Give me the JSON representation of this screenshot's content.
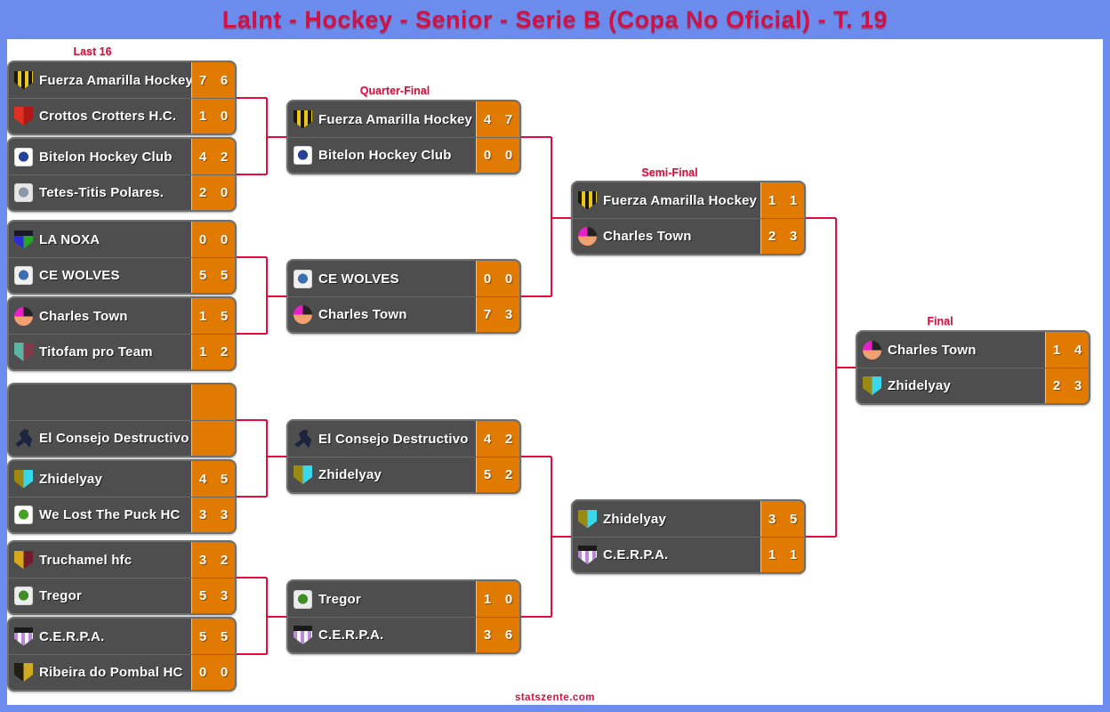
{
  "header": {
    "title": "LaInt - Hockey - Senior - Serie B (Copa No Oficial) - T. 19"
  },
  "footer": {
    "watermark": "statszente.com"
  },
  "colors": {
    "banner_blue": "#6b8ced",
    "label_crimson": "#d6113f",
    "connector_crimson": "#e50b3c",
    "row_gray": "#4e4e4e",
    "score_orange": "#e17a00"
  },
  "bracket": {
    "rounds": [
      {
        "label": "Last 16",
        "matches": [
          {
            "teams": [
              {
                "name": "Fuerza Amarilla Hockey",
                "scores": [
                  "7",
                  "6"
                ],
                "icon": {
                  "name": "fuerza-amarilla-crest-icon",
                  "shape": "stripes",
                  "colors": [
                    "#1a1710",
                    "#e8c520"
                  ]
                }
              },
              {
                "name": "Crottos Crotters H.C.",
                "scores": [
                  "1",
                  "0"
                ],
                "icon": {
                  "name": "crottos-crotters-crest-icon",
                  "shape": "shield",
                  "colors": [
                    "#e03024",
                    "#b01818"
                  ]
                }
              }
            ]
          },
          {
            "teams": [
              {
                "name": "Bitelon Hockey Club",
                "scores": [
                  "4",
                  "2"
                ],
                "icon": {
                  "name": "bitelon-crest-icon",
                  "shape": "square",
                  "colors": [
                    "#ffffff",
                    "#24429a"
                  ]
                }
              },
              {
                "name": "Tetes-Titis Polares.",
                "scores": [
                  "2",
                  "0"
                ],
                "icon": {
                  "name": "tetes-titis-mascot-icon",
                  "shape": "square",
                  "colors": [
                    "#e6e6e6",
                    "#8c96aa"
                  ]
                }
              }
            ]
          },
          {
            "teams": [
              {
                "name": "LA NOXA",
                "scores": [
                  "0",
                  "0"
                ],
                "icon": {
                  "name": "la-noxa-crest-icon",
                  "shape": "shield",
                  "colors": [
                    "#2c2cd8",
                    "#28a428",
                    "#181828"
                  ]
                }
              },
              {
                "name": "CE WOLVES",
                "scores": [
                  "5",
                  "5"
                ],
                "icon": {
                  "name": "ce-wolves-crest-icon",
                  "shape": "square",
                  "colors": [
                    "#f0f0f0",
                    "#3c6eb0"
                  ]
                }
              }
            ]
          },
          {
            "teams": [
              {
                "name": "Charles Town",
                "scores": [
                  "1",
                  "5"
                ],
                "icon": {
                  "name": "charles-town-crest-icon",
                  "shape": "circle",
                  "colors": [
                    "#222222",
                    "#f2a070",
                    "#e81ec8"
                  ]
                }
              },
              {
                "name": "Titofam pro Team",
                "scores": [
                  "1",
                  "2"
                ],
                "icon": {
                  "name": "titofam-crest-icon",
                  "shape": "shield",
                  "colors": [
                    "#5cb4a4",
                    "#82394a"
                  ]
                }
              }
            ]
          },
          {
            "teams": [
              {
                "name": "",
                "scores": [
                  "",
                  ""
                ],
                "icon": {
                  "name": "empty-slot",
                  "shape": "none",
                  "colors": []
                }
              },
              {
                "name": "El Consejo Destructivo",
                "scores": [
                  "",
                  ""
                ],
                "icon": {
                  "name": "el-consejo-player-icon",
                  "shape": "person",
                  "colors": [
                    "#1c2440"
                  ]
                }
              }
            ]
          },
          {
            "teams": [
              {
                "name": "Zhidelyay",
                "scores": [
                  "4",
                  "5"
                ],
                "icon": {
                  "name": "zhidelyay-crest-icon",
                  "shape": "shield",
                  "colors": [
                    "#9a8a14",
                    "#38d8ec"
                  ]
                }
              },
              {
                "name": "We Lost The Puck HC",
                "scores": [
                  "3",
                  "3"
                ],
                "icon": {
                  "name": "we-lost-the-puck-mascot-icon",
                  "shape": "square",
                  "colors": [
                    "#ffffff",
                    "#46a226"
                  ]
                }
              }
            ]
          },
          {
            "teams": [
              {
                "name": "Truchamel hfc",
                "scores": [
                  "3",
                  "2"
                ],
                "icon": {
                  "name": "truchamel-crest-icon",
                  "shape": "shield",
                  "colors": [
                    "#d8a81c",
                    "#701c2c"
                  ]
                }
              },
              {
                "name": "Tregor",
                "scores": [
                  "5",
                  "3"
                ],
                "icon": {
                  "name": "tregor-crest-icon",
                  "shape": "square",
                  "colors": [
                    "#ececec",
                    "#3e8c26"
                  ]
                }
              }
            ]
          },
          {
            "teams": [
              {
                "name": "C.E.R.P.A.",
                "scores": [
                  "5",
                  "5"
                ],
                "icon": {
                  "name": "cerpa-crest-icon",
                  "shape": "stripes",
                  "colors": [
                    "#b88ad8",
                    "#f4f4f4",
                    "#1a1a1a"
                  ]
                }
              },
              {
                "name": "Ribeira do Pombal HC",
                "scores": [
                  "0",
                  "0"
                ],
                "icon": {
                  "name": "ribeira-do-pombal-crest-icon",
                  "shape": "shield",
                  "colors": [
                    "#221e14",
                    "#d0aa1e"
                  ]
                }
              }
            ]
          }
        ]
      },
      {
        "label": "Quarter-Final",
        "matches": [
          {
            "teams": [
              {
                "name": "Fuerza Amarilla Hockey",
                "scores": [
                  "4",
                  "7"
                ],
                "icon": {
                  "name": "fuerza-amarilla-crest-icon",
                  "shape": "stripes",
                  "colors": [
                    "#1a1710",
                    "#e8c520"
                  ]
                }
              },
              {
                "name": "Bitelon Hockey Club",
                "scores": [
                  "0",
                  "0"
                ],
                "icon": {
                  "name": "bitelon-crest-icon",
                  "shape": "square",
                  "colors": [
                    "#ffffff",
                    "#24429a"
                  ]
                }
              }
            ]
          },
          {
            "teams": [
              {
                "name": "CE WOLVES",
                "scores": [
                  "0",
                  "0"
                ],
                "icon": {
                  "name": "ce-wolves-crest-icon",
                  "shape": "square",
                  "colors": [
                    "#f0f0f0",
                    "#3c6eb0"
                  ]
                }
              },
              {
                "name": "Charles Town",
                "scores": [
                  "7",
                  "3"
                ],
                "icon": {
                  "name": "charles-town-crest-icon",
                  "shape": "circle",
                  "colors": [
                    "#222222",
                    "#f2a070",
                    "#e81ec8"
                  ]
                }
              }
            ]
          },
          {
            "teams": [
              {
                "name": "El Consejo Destructivo",
                "scores": [
                  "4",
                  "2"
                ],
                "icon": {
                  "name": "el-consejo-player-icon",
                  "shape": "person",
                  "colors": [
                    "#1c2440"
                  ]
                }
              },
              {
                "name": "Zhidelyay",
                "scores": [
                  "5",
                  "2"
                ],
                "icon": {
                  "name": "zhidelyay-crest-icon",
                  "shape": "shield",
                  "colors": [
                    "#9a8a14",
                    "#38d8ec"
                  ]
                }
              }
            ]
          },
          {
            "teams": [
              {
                "name": "Tregor",
                "scores": [
                  "1",
                  "0"
                ],
                "icon": {
                  "name": "tregor-crest-icon",
                  "shape": "square",
                  "colors": [
                    "#ececec",
                    "#3e8c26"
                  ]
                }
              },
              {
                "name": "C.E.R.P.A.",
                "scores": [
                  "3",
                  "6"
                ],
                "icon": {
                  "name": "cerpa-crest-icon",
                  "shape": "stripes",
                  "colors": [
                    "#b88ad8",
                    "#f4f4f4",
                    "#1a1a1a"
                  ]
                }
              }
            ]
          }
        ]
      },
      {
        "label": "Semi-Final",
        "matches": [
          {
            "teams": [
              {
                "name": "Fuerza Amarilla Hockey",
                "scores": [
                  "1",
                  "1"
                ],
                "icon": {
                  "name": "fuerza-amarilla-crest-icon",
                  "shape": "stripes",
                  "colors": [
                    "#1a1710",
                    "#e8c520"
                  ]
                }
              },
              {
                "name": "Charles Town",
                "scores": [
                  "2",
                  "3"
                ],
                "icon": {
                  "name": "charles-town-crest-icon",
                  "shape": "circle",
                  "colors": [
                    "#222222",
                    "#f2a070",
                    "#e81ec8"
                  ]
                }
              }
            ]
          },
          {
            "teams": [
              {
                "name": "Zhidelyay",
                "scores": [
                  "3",
                  "5"
                ],
                "icon": {
                  "name": "zhidelyay-crest-icon",
                  "shape": "shield",
                  "colors": [
                    "#9a8a14",
                    "#38d8ec"
                  ]
                }
              },
              {
                "name": "C.E.R.P.A.",
                "scores": [
                  "1",
                  "1"
                ],
                "icon": {
                  "name": "cerpa-crest-icon",
                  "shape": "stripes",
                  "colors": [
                    "#b88ad8",
                    "#f4f4f4",
                    "#1a1a1a"
                  ]
                }
              }
            ]
          }
        ]
      },
      {
        "label": "Final",
        "matches": [
          {
            "teams": [
              {
                "name": "Charles Town",
                "scores": [
                  "1",
                  "4"
                ],
                "icon": {
                  "name": "charles-town-crest-icon",
                  "shape": "circle",
                  "colors": [
                    "#222222",
                    "#f2a070",
                    "#e81ec8"
                  ]
                }
              },
              {
                "name": "Zhidelyay",
                "scores": [
                  "2",
                  "3"
                ],
                "icon": {
                  "name": "zhidelyay-crest-icon",
                  "shape": "shield",
                  "colors": [
                    "#9a8a14",
                    "#38d8ec"
                  ]
                }
              }
            ]
          }
        ]
      }
    ]
  }
}
